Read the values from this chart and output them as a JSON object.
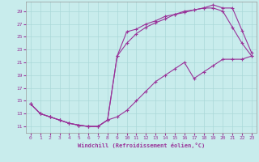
{
  "xlabel": "Windchill (Refroidissement éolien,°C)",
  "background_color": "#c8ecec",
  "grid_color": "#aad8d8",
  "line_color": "#993399",
  "xlim": [
    -0.5,
    23.5
  ],
  "ylim": [
    10,
    30.5
  ],
  "xticks": [
    0,
    1,
    2,
    3,
    4,
    5,
    6,
    7,
    8,
    9,
    10,
    11,
    12,
    13,
    14,
    15,
    16,
    17,
    18,
    19,
    20,
    21,
    22,
    23
  ],
  "yticks": [
    11,
    13,
    15,
    17,
    19,
    21,
    23,
    25,
    27,
    29
  ],
  "curve1_x": [
    0,
    1,
    2,
    3,
    4,
    5,
    6,
    7,
    8,
    9,
    10,
    11,
    12,
    13,
    14,
    15,
    16,
    17,
    18,
    19,
    20,
    21,
    22,
    23
  ],
  "curve1_y": [
    14.5,
    13.0,
    12.5,
    12.0,
    11.5,
    11.2,
    11.0,
    11.0,
    12.0,
    22.0,
    25.8,
    26.2,
    27.0,
    27.5,
    28.2,
    28.5,
    28.8,
    29.2,
    29.5,
    29.5,
    29.0,
    26.5,
    24.0,
    22.0
  ],
  "curve2_x": [
    0,
    1,
    2,
    3,
    4,
    5,
    6,
    7,
    8,
    9,
    10,
    11,
    12,
    13,
    14,
    15,
    16,
    17,
    18,
    19,
    20,
    21,
    22,
    23
  ],
  "curve2_y": [
    14.5,
    13.0,
    12.5,
    12.0,
    11.5,
    11.2,
    11.0,
    11.0,
    12.0,
    22.0,
    24.0,
    25.5,
    26.5,
    27.2,
    27.8,
    28.5,
    29.0,
    29.2,
    29.5,
    30.0,
    29.5,
    29.5,
    26.0,
    22.5
  ],
  "curve3_x": [
    0,
    1,
    2,
    3,
    4,
    5,
    6,
    7,
    8,
    9,
    10,
    11,
    12,
    13,
    14,
    15,
    16,
    17,
    18,
    19,
    20,
    21,
    22,
    23
  ],
  "curve3_y": [
    14.5,
    13.0,
    12.5,
    12.0,
    11.5,
    11.2,
    11.0,
    11.0,
    12.0,
    12.5,
    13.5,
    15.0,
    16.5,
    18.0,
    19.0,
    20.0,
    21.0,
    18.5,
    19.5,
    20.5,
    21.5,
    21.5,
    21.5,
    22.0
  ]
}
